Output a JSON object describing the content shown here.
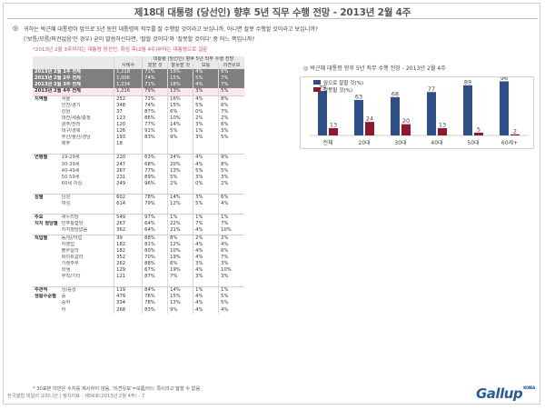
{
  "title": "제18대 대통령 (당선인) 향후 5년 직무 수행 전망 - 2013년 2월 4주",
  "question": {
    "mark": "◎",
    "line1": "귀하는 박근혜 대통령이 앞으로 5년 동안 대통령의 직무를 잘 수행할 것이라고 보십니까, 아니면 잘못 수행할 것이라고 보십니까?",
    "line2": "('보통/모름/의견없음'인 경우) 굳이 말씀하신다면, '잘할 것이다'와 '잘못할 것이다' 중 어느 쪽입니까?"
  },
  "note": "*2013년 2월 3주까지는 대통령 당선인, 취임 후(2월 4주)부터는 대통령으로 질문",
  "table": {
    "header_group": "대통령 (당선인) 향후 5년 직무 수행 전망",
    "columns": [
      "사례수",
      "잘할 것",
      "잘못할 것",
      "보통",
      "의견유보"
    ],
    "rows": [
      {
        "g": "2013년 2월 1주 전체",
        "s": "",
        "n": "1,218",
        "a": "71%",
        "b": "19%",
        "c": "4%",
        "d": "6%",
        "style": "dk"
      },
      {
        "g": "2013년 2월 2주 전체",
        "s": "",
        "n": "1,006",
        "a": "74%",
        "b": "15%",
        "c": "5%",
        "d": "7%",
        "style": "dk"
      },
      {
        "g": "2013년 2월 3주 전체",
        "s": "",
        "n": "1,234",
        "a": "71%",
        "b": "18%",
        "c": "4%",
        "d": "7%",
        "style": "dk"
      },
      {
        "g": "2013년 2월 4주 전체",
        "s": "",
        "n": "1,216",
        "a": "79%",
        "b": "13%",
        "c": "3%",
        "d": "5%",
        "style": "hl"
      },
      {
        "g": "지역별",
        "s": "서울",
        "n": "252",
        "a": "72%",
        "b": "16%",
        "c": "4%",
        "d": "8%",
        "style": "grp"
      },
      {
        "g": "",
        "s": "인천/경기",
        "n": "348",
        "a": "74%",
        "b": "15%",
        "c": "5%",
        "d": "6%",
        "style": ""
      },
      {
        "g": "",
        "s": "강원",
        "n": "37",
        "a": "87%",
        "b": "6%",
        "c": "0%",
        "d": "7%",
        "style": ""
      },
      {
        "g": "",
        "s": "대전/세종/충청",
        "n": "123",
        "a": "86%",
        "b": "10%",
        "c": "2%",
        "d": "2%",
        "style": ""
      },
      {
        "g": "",
        "s": "광주/전라",
        "n": "120",
        "a": "77%",
        "b": "14%",
        "c": "3%",
        "d": "6%",
        "style": ""
      },
      {
        "g": "",
        "s": "대구/경북",
        "n": "126",
        "a": "91%",
        "b": "5%",
        "c": "1%",
        "d": "3%",
        "style": ""
      },
      {
        "g": "",
        "s": "부산/울산/경남",
        "n": "193",
        "a": "83%",
        "b": "9%",
        "c": "3%",
        "d": "5%",
        "style": ""
      },
      {
        "g": "",
        "s": "제주",
        "n": "18",
        "a": "",
        "b": "",
        "c": "",
        "d": "",
        "style": ""
      },
      {
        "g": "",
        "s": "",
        "n": "",
        "a": "",
        "b": "",
        "c": "",
        "d": "",
        "style": ""
      },
      {
        "g": "연령별",
        "s": "19-29세",
        "n": "220",
        "a": "63%",
        "b": "24%",
        "c": "4%",
        "d": "9%",
        "style": "grp"
      },
      {
        "g": "",
        "s": "30-39세",
        "n": "247",
        "a": "68%",
        "b": "20%",
        "c": "4%",
        "d": "8%",
        "style": ""
      },
      {
        "g": "",
        "s": "40-49세",
        "n": "267",
        "a": "77%",
        "b": "13%",
        "c": "5%",
        "d": "5%",
        "style": ""
      },
      {
        "g": "",
        "s": "50-59세",
        "n": "231",
        "a": "89%",
        "b": "5%",
        "c": "3%",
        "d": "3%",
        "style": ""
      },
      {
        "g": "",
        "s": "60세 이상",
        "n": "249",
        "a": "96%",
        "b": "2%",
        "c": "0%",
        "d": "2%",
        "style": ""
      },
      {
        "g": "",
        "s": "",
        "n": "",
        "a": "",
        "b": "",
        "c": "",
        "d": "",
        "style": ""
      },
      {
        "g": "성별",
        "s": "남성",
        "n": "602",
        "a": "78%",
        "b": "14%",
        "c": "3%",
        "d": "6%",
        "style": "grp"
      },
      {
        "g": "",
        "s": "여성",
        "n": "614",
        "a": "79%",
        "b": "12%",
        "c": "5%",
        "d": "4%",
        "style": ""
      },
      {
        "g": "",
        "s": "",
        "n": "",
        "a": "",
        "b": "",
        "c": "",
        "d": "",
        "style": ""
      },
      {
        "g": "주요",
        "s": "새누리당",
        "n": "549",
        "a": "97%",
        "b": "1%",
        "c": "1%",
        "d": "1%",
        "style": "grp"
      },
      {
        "g": "지지 정당별",
        "s": "민주통합당",
        "n": "267",
        "a": "64%",
        "b": "22%",
        "c": "7%",
        "d": "7%",
        "style": ""
      },
      {
        "g": "",
        "s": "지지정당없음",
        "n": "362",
        "a": "64%",
        "b": "21%",
        "c": "4%",
        "d": "10%",
        "style": ""
      },
      {
        "g": "직업별",
        "s": "농/임/어업",
        "n": "39",
        "a": "88%",
        "b": "8%",
        "c": "2%",
        "d": "2%",
        "style": "grp"
      },
      {
        "g": "",
        "s": "자영업",
        "n": "182",
        "a": "81%",
        "b": "12%",
        "c": "4%",
        "d": "4%",
        "style": ""
      },
      {
        "g": "",
        "s": "블루칼라",
        "n": "182",
        "a": "80%",
        "b": "10%",
        "c": "4%",
        "d": "6%",
        "style": ""
      },
      {
        "g": "",
        "s": "화이트칼라",
        "n": "352",
        "a": "70%",
        "b": "19%",
        "c": "4%",
        "d": "7%",
        "style": ""
      },
      {
        "g": "",
        "s": "가정주부",
        "n": "262",
        "a": "88%",
        "b": "6%",
        "c": "3%",
        "d": "3%",
        "style": ""
      },
      {
        "g": "",
        "s": "학생",
        "n": "129",
        "a": "67%",
        "b": "19%",
        "c": "4%",
        "d": "10%",
        "style": ""
      },
      {
        "g": "",
        "s": "무직/기타",
        "n": "121",
        "a": "87%",
        "b": "7%",
        "c": "3%",
        "d": "3%",
        "style": ""
      },
      {
        "g": "",
        "s": "",
        "n": "",
        "a": "",
        "b": "",
        "c": "",
        "d": "",
        "style": ""
      },
      {
        "g": "주관적",
        "s": "상/중상",
        "n": "119",
        "a": "84%",
        "b": "14%",
        "c": "1%",
        "d": "1%",
        "style": "grp"
      },
      {
        "g": "생활수준별",
        "s": "중",
        "n": "479",
        "a": "76%",
        "b": "15%",
        "c": "4%",
        "d": "5%",
        "style": ""
      },
      {
        "g": "",
        "s": "중하",
        "n": "334",
        "a": "78%",
        "b": "13%",
        "c": "4%",
        "d": "5%",
        "style": ""
      },
      {
        "g": "",
        "s": "하",
        "n": "268",
        "a": "83%",
        "b": "9%",
        "c": "4%",
        "d": "4%",
        "style": ""
      }
    ]
  },
  "footnote": "* 30표본 미만은 수치를 제시하지 않음, '의견유보'=모름/어느 쪽이라고 말할 수 없음",
  "footer": "한국갤럽 데일리 오피니언 | 정치지표 - 제56호(2013년 2월 4주) - 7",
  "logo": "Gallup",
  "logo_small": "KOREA",
  "chart_title": "◎ 박근혜 대통령 향후 5년 직무 수행 전망 - 2013년 2월 4주",
  "chart_data": {
    "type": "bar",
    "categories": [
      "전체",
      "20대",
      "30대",
      "40대",
      "50대",
      "60세+"
    ],
    "series": [
      {
        "name": "앞으로 잘할 것(%)",
        "values": [
          79,
          63,
          68,
          77,
          89,
          96
        ],
        "color": "#2e4f86"
      },
      {
        "name": "잘못할 것(%)",
        "values": [
          13,
          24,
          20,
          13,
          5,
          2
        ],
        "color": "#8e1a2b"
      }
    ],
    "ylim": [
      0,
      100
    ],
    "legend": "top-left"
  }
}
